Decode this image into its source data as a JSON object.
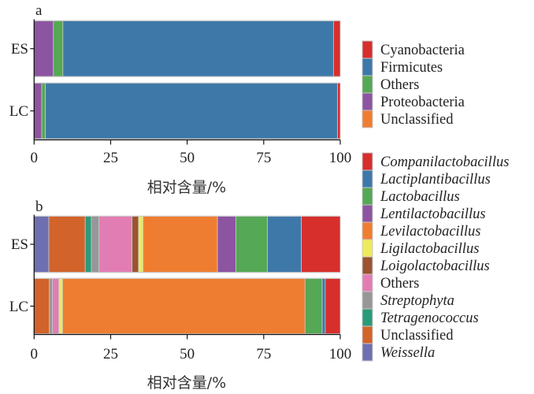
{
  "chart_data": [
    {
      "panel": "a",
      "type": "bar",
      "orientation": "horizontal",
      "stacked": true,
      "title": "a",
      "xlabel": "相对含量/%",
      "ylabel": "",
      "xlim": [
        0,
        100
      ],
      "xticks": [
        0,
        25,
        50,
        75,
        100
      ],
      "categories": [
        "ES",
        "LC"
      ],
      "legend_position": "right",
      "grid": false,
      "legend_order": [
        "Cyanobacteria",
        "Firmicutes",
        "Others",
        "Proteobacteria",
        "Unclassified"
      ],
      "stack_order": [
        "Proteobacteria",
        "Others",
        "Firmicutes",
        "Cyanobacteria",
        "Unclassified"
      ],
      "series": [
        {
          "name": "Cyanobacteria",
          "italic": false,
          "color": "#d62f2c",
          "values": [
            2.2,
            0.9
          ]
        },
        {
          "name": "Firmicutes",
          "italic": false,
          "color": "#3e78a9",
          "values": [
            88.4,
            95.4
          ]
        },
        {
          "name": "Others",
          "italic": false,
          "color": "#55a855",
          "values": [
            3.1,
            1.2
          ]
        },
        {
          "name": "Proteobacteria",
          "italic": false,
          "color": "#8c54a1",
          "values": [
            6.3,
            2.5
          ]
        },
        {
          "name": "Unclassified",
          "italic": false,
          "color": "#ef7d31",
          "values": [
            0.0,
            0.0
          ]
        }
      ]
    },
    {
      "panel": "b",
      "type": "bar",
      "orientation": "horizontal",
      "stacked": true,
      "title": "b",
      "xlabel": "相对含量/%",
      "ylabel": "",
      "xlim": [
        0,
        100
      ],
      "xticks": [
        0,
        25,
        50,
        75,
        100
      ],
      "categories": [
        "ES",
        "LC"
      ],
      "legend_position": "right",
      "grid": false,
      "legend_order": [
        "Companilactobacillus",
        "Lactiplantibacillus",
        "Lactobacillus",
        "Lentilactobacillus",
        "Levilactobacillus",
        "Ligilactobacillus",
        "Loigolactobacillus",
        "Others",
        "Streptophyta",
        "Tetragenococcus",
        "Unclassified",
        "Weissella"
      ],
      "stack_order": [
        "Weissella",
        "Unclassified",
        "Tetragenococcus",
        "Streptophyta",
        "Others",
        "Loigolactobacillus",
        "Ligilactobacillus",
        "Levilactobacillus",
        "Lentilactobacillus",
        "Lactobacillus",
        "Lactiplantibacillus",
        "Companilactobacillus"
      ],
      "series": [
        {
          "name": "Companilactobacillus",
          "italic": true,
          "color": "#d62f2c",
          "values": [
            12.7,
            4.9
          ]
        },
        {
          "name": "Lactiplantibacillus",
          "italic": true,
          "color": "#3e78a9",
          "values": [
            11.1,
            1.0
          ]
        },
        {
          "name": "Lactobacillus",
          "italic": true,
          "color": "#55a855",
          "values": [
            10.3,
            5.6
          ]
        },
        {
          "name": "Lentilactobacillus",
          "italic": true,
          "color": "#8c54a1",
          "values": [
            6.0,
            0.0
          ]
        },
        {
          "name": "Levilactobacillus",
          "italic": true,
          "color": "#ef7d31",
          "values": [
            24.3,
            79.2
          ]
        },
        {
          "name": "Ligilactobacillus",
          "italic": true,
          "color": "#eeea5c",
          "values": [
            1.5,
            1.2
          ]
        },
        {
          "name": "Loigolactobacillus",
          "italic": true,
          "color": "#9b5330",
          "values": [
            2.1,
            0.0
          ]
        },
        {
          "name": "Others",
          "italic": false,
          "color": "#e27db4",
          "values": [
            10.8,
            2.1
          ]
        },
        {
          "name": "Streptophyta",
          "italic": true,
          "color": "#979797",
          "values": [
            2.5,
            1.0
          ]
        },
        {
          "name": "Tetragenococcus",
          "italic": true,
          "color": "#2b9a7a",
          "values": [
            2.0,
            0.0
          ]
        },
        {
          "name": "Unclassified",
          "italic": false,
          "color": "#d2632a",
          "values": [
            11.9,
            5.0
          ]
        },
        {
          "name": "Weissella",
          "italic": true,
          "color": "#6e6fb0",
          "values": [
            4.8,
            0.0
          ]
        }
      ]
    }
  ]
}
